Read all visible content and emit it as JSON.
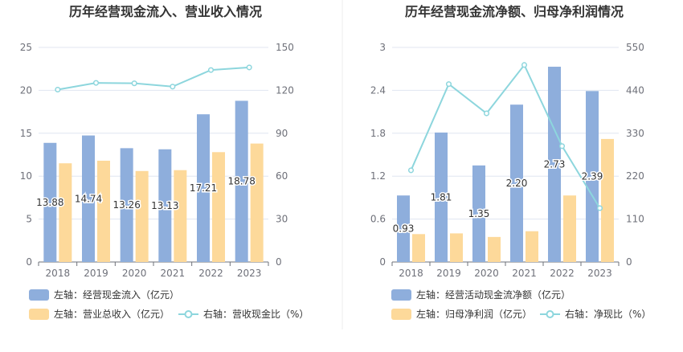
{
  "colors": {
    "bar_left": "#8eaedc",
    "bar_right": "#fdd99a",
    "line": "#8dd6dd",
    "grid": "#e0e6f1",
    "axis": "#6e7079",
    "title": "#333333"
  },
  "chart_data": [
    {
      "type": "bar+line",
      "title": "历年经营现金流入、营业收入情况",
      "categories": [
        "2018",
        "2019",
        "2020",
        "2021",
        "2022",
        "2023"
      ],
      "y_left": {
        "min": 0,
        "max": 25,
        "ticks": [
          "0",
          "5",
          "10",
          "15",
          "20",
          "25"
        ]
      },
      "y_right": {
        "min": 0,
        "max": 150,
        "ticks": [
          "0",
          "30",
          "60",
          "90",
          "120",
          "150"
        ]
      },
      "series": [
        {
          "name": "左轴：经营现金流入（亿元）",
          "kind": "bar",
          "axis": "left",
          "color": "#8eaedc",
          "values": [
            13.88,
            14.74,
            13.26,
            13.13,
            17.21,
            18.78
          ],
          "labels": [
            "13.88",
            "14.74",
            "13.26",
            "13.13",
            "17.21",
            "18.78"
          ]
        },
        {
          "name": "左轴：营业总收入（亿元）",
          "kind": "bar",
          "axis": "left",
          "color": "#fdd99a",
          "values": [
            11.5,
            11.8,
            10.6,
            10.7,
            12.8,
            13.8
          ]
        },
        {
          "name": "右轴：营收现金比（%）",
          "kind": "line",
          "axis": "right",
          "color": "#8dd6dd",
          "values": [
            120.5,
            125.2,
            124.9,
            122.6,
            134.2,
            136.0
          ]
        }
      ],
      "legend_position": "bottom",
      "grid": true
    },
    {
      "type": "bar+line",
      "title": "历年经营现金流净额、归母净利润情况",
      "categories": [
        "2018",
        "2019",
        "2020",
        "2021",
        "2022",
        "2023"
      ],
      "y_left": {
        "min": 0,
        "max": 3,
        "ticks": [
          "0",
          "0.6",
          "1.2",
          "1.8",
          "2.4",
          "3"
        ]
      },
      "y_right": {
        "min": 0,
        "max": 550,
        "ticks": [
          "0",
          "110",
          "220",
          "330",
          "440",
          "550"
        ]
      },
      "series": [
        {
          "name": "左轴：经营活动现金流净额（亿元）",
          "kind": "bar",
          "axis": "left",
          "color": "#8eaedc",
          "values": [
            0.93,
            1.81,
            1.35,
            2.2,
            2.73,
            2.39
          ],
          "labels": [
            "0.93",
            "1.81",
            "1.35",
            "2.20",
            "2.73",
            "2.39"
          ]
        },
        {
          "name": "左轴：归母净利润（亿元）",
          "kind": "bar",
          "axis": "left",
          "color": "#fdd99a",
          "values": [
            0.39,
            0.4,
            0.35,
            0.43,
            0.93,
            1.72
          ]
        },
        {
          "name": "右轴：净现比（%）",
          "kind": "line",
          "axis": "right",
          "color": "#8dd6dd",
          "values": [
            235,
            456,
            381,
            505,
            297,
            138
          ]
        }
      ],
      "legend_position": "bottom",
      "grid": true
    }
  ]
}
